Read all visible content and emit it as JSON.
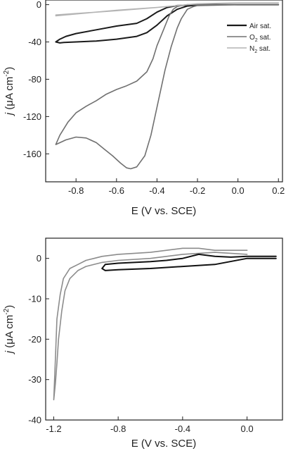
{
  "chart_data": [
    {
      "type": "line",
      "title": "",
      "xlabel": "E (V vs. SCE)",
      "ylabel": "j (μA cm⁻²)",
      "xlim": [
        -0.95,
        0.22
      ],
      "ylim": [
        -190,
        5
      ],
      "xticks": [
        -0.8,
        -0.6,
        -0.4,
        -0.2,
        0.0,
        0.2
      ],
      "xtick_labels": [
        "-0.8",
        "-0.6",
        "-0.4",
        "-0.2",
        "0.0",
        "0.2"
      ],
      "yticks": [
        0,
        -40,
        -80,
        -120,
        -160
      ],
      "ytick_labels": [
        "0",
        "-40",
        "-80",
        "-120",
        "-160"
      ],
      "legend": {
        "placement": "top-right"
      },
      "series": [
        {
          "name": "Air sat.",
          "color": "#1a1a1a",
          "x": [
            0.2,
            0.1,
            0.0,
            -0.1,
            -0.2,
            -0.25,
            -0.3,
            -0.35,
            -0.4,
            -0.45,
            -0.5,
            -0.6,
            -0.7,
            -0.8,
            -0.86,
            -0.88,
            -0.9,
            -0.88,
            -0.85,
            -0.8,
            -0.7,
            -0.6,
            -0.5,
            -0.45,
            -0.4,
            -0.35,
            -0.3,
            -0.25,
            -0.2,
            -0.1,
            0.0,
            0.1,
            0.2
          ],
          "y": [
            0,
            0,
            0,
            0,
            -0.5,
            -1.5,
            -5,
            -12,
            -22,
            -30,
            -34,
            -37,
            -39,
            -40,
            -40.5,
            -41,
            -40,
            -37,
            -34,
            -31,
            -27,
            -23,
            -20,
            -15,
            -8,
            -3,
            -1,
            -0.5,
            0,
            0,
            0,
            0,
            0
          ]
        },
        {
          "name": "O₂ sat.",
          "color": "#707070",
          "x": [
            0.2,
            0.1,
            0.0,
            -0.1,
            -0.2,
            -0.22,
            -0.25,
            -0.28,
            -0.3,
            -0.33,
            -0.36,
            -0.4,
            -0.43,
            -0.46,
            -0.5,
            -0.53,
            -0.55,
            -0.58,
            -0.62,
            -0.66,
            -0.7,
            -0.75,
            -0.8,
            -0.85,
            -0.9,
            -0.88,
            -0.84,
            -0.8,
            -0.75,
            -0.7,
            -0.65,
            -0.6,
            -0.55,
            -0.5,
            -0.45,
            -0.42,
            -0.4,
            -0.37,
            -0.34,
            -0.32,
            -0.3,
            -0.28,
            -0.25,
            -0.2,
            -0.1,
            0.0,
            0.1,
            0.2
          ],
          "y": [
            0,
            0,
            0,
            -0.5,
            -1,
            -2,
            -5,
            -15,
            -25,
            -45,
            -70,
            -110,
            -140,
            -162,
            -174,
            -176,
            -175,
            -170,
            -162,
            -155,
            -148,
            -143,
            -142,
            -145,
            -150,
            -140,
            -126,
            -116,
            -109,
            -103,
            -96,
            -91,
            -87,
            -82,
            -72,
            -58,
            -44,
            -28,
            -12,
            -5,
            -2,
            -1,
            0,
            0,
            0,
            0,
            0,
            0
          ]
        },
        {
          "name": "N₂ sat.",
          "color": "#b4b4b4",
          "x": [
            -0.9,
            -0.8,
            -0.6,
            -0.4,
            -0.2,
            0.0,
            0.2,
            0.2,
            0.0,
            -0.2,
            -0.4,
            -0.6,
            -0.8,
            -0.9
          ],
          "y": [
            -12,
            -10,
            -6,
            -3,
            1,
            2,
            2,
            2,
            2,
            1,
            -3,
            -6.5,
            -9.5,
            -11
          ]
        }
      ]
    },
    {
      "type": "line",
      "title": "",
      "xlabel": "E (V vs. SCE)",
      "ylabel": "j (μA cm⁻²)",
      "xlim": [
        -1.25,
        0.22
      ],
      "ylim": [
        -40,
        5
      ],
      "xticks": [
        -1.2,
        -0.8,
        -0.4,
        0.0
      ],
      "xtick_labels": [
        "-1.2",
        "-0.8",
        "-0.4",
        "0.0"
      ],
      "yticks": [
        0,
        -10,
        -20,
        -30,
        -40
      ],
      "ytick_labels": [
        "0",
        "-10",
        "-20",
        "-30",
        "-40"
      ],
      "series": [
        {
          "name": "",
          "color": "#8c8c8c",
          "x": [
            0.0,
            -0.2,
            -0.4,
            -0.6,
            -0.8,
            -0.9,
            -1.0,
            -1.05,
            -1.1,
            -1.13,
            -1.15,
            -1.17,
            -1.18,
            -1.19,
            -1.2,
            -1.19,
            -1.18,
            -1.16,
            -1.14,
            -1.1,
            -1.05,
            -1.0,
            -0.95,
            -0.9,
            -0.8,
            -0.6,
            -0.4,
            -0.3,
            -0.2,
            -0.1,
            0.0
          ],
          "y": [
            1,
            1.5,
            1,
            0,
            -0.5,
            -1,
            -2,
            -3,
            -5,
            -8,
            -13,
            -20,
            -26,
            -31,
            -35,
            -25,
            -15,
            -9,
            -5,
            -2.5,
            -1.5,
            -0.5,
            0,
            0.5,
            1,
            1.5,
            2.5,
            2.5,
            2,
            2,
            2
          ]
        },
        {
          "name": "",
          "color": "#111111",
          "x": [
            0.18,
            0.0,
            -0.2,
            -0.4,
            -0.6,
            -0.8,
            -0.88,
            -0.9,
            -0.88,
            -0.8,
            -0.6,
            -0.5,
            -0.4,
            -0.3,
            -0.2,
            -0.1,
            0.0,
            0.18
          ],
          "y": [
            0,
            0,
            -1.5,
            -2,
            -2.5,
            -2.8,
            -3,
            -2.5,
            -1.5,
            -1.2,
            -0.8,
            -0.5,
            0,
            1,
            0.5,
            0.3,
            0.5,
            0.5
          ]
        }
      ]
    }
  ],
  "legend_items": [
    {
      "text": "Air sat.",
      "color": "#1a1a1a"
    },
    {
      "text": "O",
      "sub": "2",
      "suffix": " sat.",
      "color": "#707070"
    },
    {
      "text": "N",
      "sub": "2",
      "suffix": " sat.",
      "color": "#b4b4b4"
    }
  ],
  "axis_labels": {
    "j": "j",
    "unit_open": " (μA cm",
    "unit_exp": "-2",
    "unit_close": ")",
    "x": "E (V vs. SCE)"
  }
}
